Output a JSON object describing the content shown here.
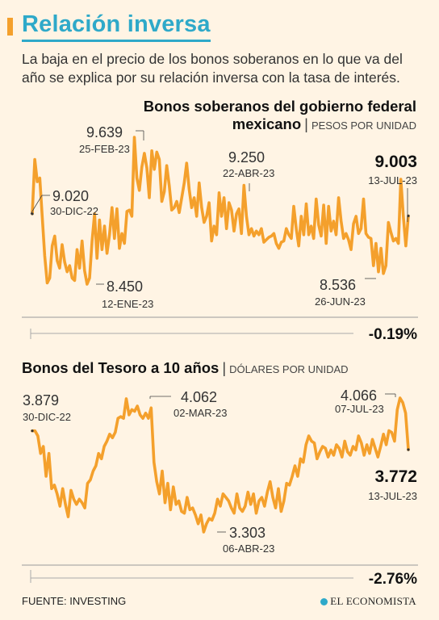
{
  "header": {
    "title": "Relación inversa",
    "subtitle": "La baja en el precio de los bonos soberanos en lo que va del año se explica por su relación inversa con la tasa de interés."
  },
  "colors": {
    "accent": "#f4a02c",
    "title": "#2ea9c9",
    "line": "#f4a02c",
    "background": "#fff4e4"
  },
  "footer": {
    "source": "FUENTE: INVESTING",
    "logo": "EL ECONOMISTA"
  },
  "chart_data": [
    {
      "type": "line",
      "title_line1": "Bonos soberanos del gobierno federal",
      "title_line2": "mexicano",
      "unit": "PESOS POR UNIDAD",
      "start_date": "30-DIC-22",
      "end_date": "13-JUL-23",
      "ylim": [
        8.3,
        9.75
      ],
      "values": [
        9.02,
        9.46,
        9.28,
        9.31,
        9.0,
        8.68,
        8.46,
        8.5,
        8.76,
        8.84,
        8.64,
        8.58,
        8.77,
        8.63,
        8.55,
        8.6,
        8.5,
        8.48,
        8.73,
        8.58,
        8.8,
        8.56,
        8.45,
        8.5,
        8.8,
        9.02,
        8.66,
        8.97,
        8.73,
        8.92,
        8.7,
        8.85,
        9.07,
        8.82,
        9.06,
        8.74,
        8.86,
        8.78,
        9.04,
        9.05,
        9.0,
        9.64,
        9.31,
        9.21,
        9.4,
        9.51,
        9.39,
        9.15,
        9.53,
        9.38,
        9.52,
        9.46,
        9.12,
        9.2,
        9.41,
        9.25,
        9.05,
        9.07,
        9.12,
        9.03,
        9.15,
        9.27,
        9.43,
        9.22,
        9.07,
        9.15,
        9.0,
        9.27,
        9.07,
        8.95,
        9.0,
        9.11,
        8.8,
        8.92,
        8.85,
        9.19,
        9.0,
        9.15,
        8.9,
        9.11,
        9.05,
        8.88,
        9.02,
        9.06,
        8.86,
        9.25,
        9.0,
        8.85,
        8.9,
        8.84,
        8.88,
        8.85,
        8.9,
        8.79,
        8.81,
        8.83,
        8.84,
        8.86,
        8.78,
        8.74,
        8.79,
        8.8,
        8.9,
        8.85,
        8.82,
        9.08,
        8.9,
        8.76,
        9.0,
        8.85,
        9.1,
        8.85,
        8.92,
        8.82,
        9.14,
        8.93,
        8.84,
        9.09,
        8.78,
        9.08,
        8.88,
        8.96,
        8.85,
        9.15,
        8.96,
        8.82,
        8.86,
        8.81,
        8.73,
        8.94,
        9.0,
        8.86,
        8.9,
        9.14,
        8.86,
        8.83,
        8.82,
        8.6,
        8.78,
        8.55,
        8.74,
        8.536,
        8.6,
        8.95,
        8.87,
        8.8,
        8.82,
        8.78,
        9.3,
        9.0,
        8.76,
        9.003
      ],
      "annotations": [
        {
          "value": "9.020",
          "date": "30-DIC-22"
        },
        {
          "value": "8.450",
          "date": "12-ENE-23"
        },
        {
          "value": "9.639",
          "date": "25-FEB-23"
        },
        {
          "value": "9.250",
          "date": "22-ABR-23"
        },
        {
          "value": "8.536",
          "date": "26-JUN-23"
        },
        {
          "value": "9.003",
          "date": "13-JUL-23"
        }
      ],
      "change": "-0.19%"
    },
    {
      "type": "line",
      "title": "Bonos del Tesoro a 10 años",
      "unit": "DÓLARES POR UNIDAD",
      "start_date": "30-DIC-22",
      "end_date": "13-JUL-23",
      "ylim": [
        3.25,
        4.12
      ],
      "values": [
        3.879,
        3.879,
        3.85,
        3.75,
        3.79,
        3.62,
        3.75,
        3.55,
        3.57,
        3.52,
        3.45,
        3.55,
        3.46,
        3.39,
        3.54,
        3.49,
        3.46,
        3.49,
        3.47,
        3.44,
        3.58,
        3.6,
        3.65,
        3.68,
        3.75,
        3.72,
        3.79,
        3.82,
        3.86,
        3.84,
        3.87,
        3.95,
        3.96,
        3.95,
        4.062,
        3.97,
        4.0,
        3.99,
        4.02,
        3.97,
        3.95,
        3.98,
        3.95,
        4.01,
        3.7,
        3.59,
        3.52,
        3.65,
        3.47,
        3.58,
        3.43,
        3.56,
        3.46,
        3.48,
        3.42,
        3.41,
        3.5,
        3.43,
        3.44,
        3.4,
        3.35,
        3.4,
        3.303,
        3.35,
        3.38,
        3.37,
        3.41,
        3.49,
        3.45,
        3.52,
        3.5,
        3.48,
        3.44,
        3.41,
        3.52,
        3.44,
        3.42,
        3.45,
        3.53,
        3.46,
        3.52,
        3.41,
        3.48,
        3.5,
        3.45,
        3.53,
        3.59,
        3.5,
        3.44,
        3.55,
        3.42,
        3.48,
        3.58,
        3.57,
        3.62,
        3.68,
        3.62,
        3.72,
        3.7,
        3.8,
        3.85,
        3.82,
        3.81,
        3.72,
        3.76,
        3.79,
        3.78,
        3.73,
        3.77,
        3.74,
        3.8,
        3.78,
        3.73,
        3.82,
        3.76,
        3.74,
        3.79,
        3.77,
        3.85,
        3.81,
        3.74,
        3.8,
        3.75,
        3.83,
        3.78,
        3.73,
        3.79,
        3.86,
        3.8,
        3.88,
        3.87,
        3.82,
        4.0,
        4.066,
        4.04,
        3.98,
        3.772
      ],
      "annotations": [
        {
          "value": "3.879",
          "date": "30-DIC-22"
        },
        {
          "value": "4.062",
          "date": "02-MAR-23"
        },
        {
          "value": "3.303",
          "date": "06-ABR-23"
        },
        {
          "value": "4.066",
          "date": "07-JUL-23"
        },
        {
          "value": "3.772",
          "date": "13-JUL-23"
        }
      ],
      "change": "-2.76%"
    }
  ]
}
